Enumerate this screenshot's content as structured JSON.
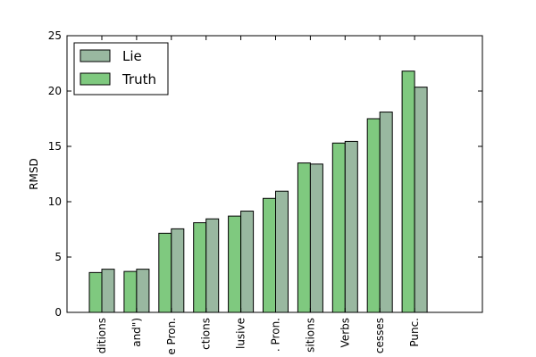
{
  "chart_data": {
    "type": "bar",
    "title": "",
    "xlabel": "",
    "ylabel": "RMSD",
    "ylim": [
      0,
      25
    ],
    "yticks": [
      0,
      5,
      10,
      15,
      20,
      25
    ],
    "grid": false,
    "legend_position": "top-left",
    "categories": [
      "ditions",
      "and\")",
      "e Pron.",
      "ctions",
      "lusive",
      ". Pron.",
      "sitions",
      "Verbs",
      "cesses",
      "Punc."
    ],
    "series": [
      {
        "name": "Truth",
        "color": "#7fc97f",
        "values": [
          3.6,
          3.7,
          7.15,
          8.1,
          8.7,
          10.3,
          13.5,
          15.3,
          17.5,
          21.8
        ]
      },
      {
        "name": "Lie",
        "color": "#99b8a0",
        "values": [
          3.9,
          3.9,
          7.55,
          8.45,
          9.15,
          10.95,
          13.4,
          15.45,
          18.1,
          20.35
        ]
      }
    ],
    "legend_order": [
      "Lie",
      "Truth"
    ]
  }
}
